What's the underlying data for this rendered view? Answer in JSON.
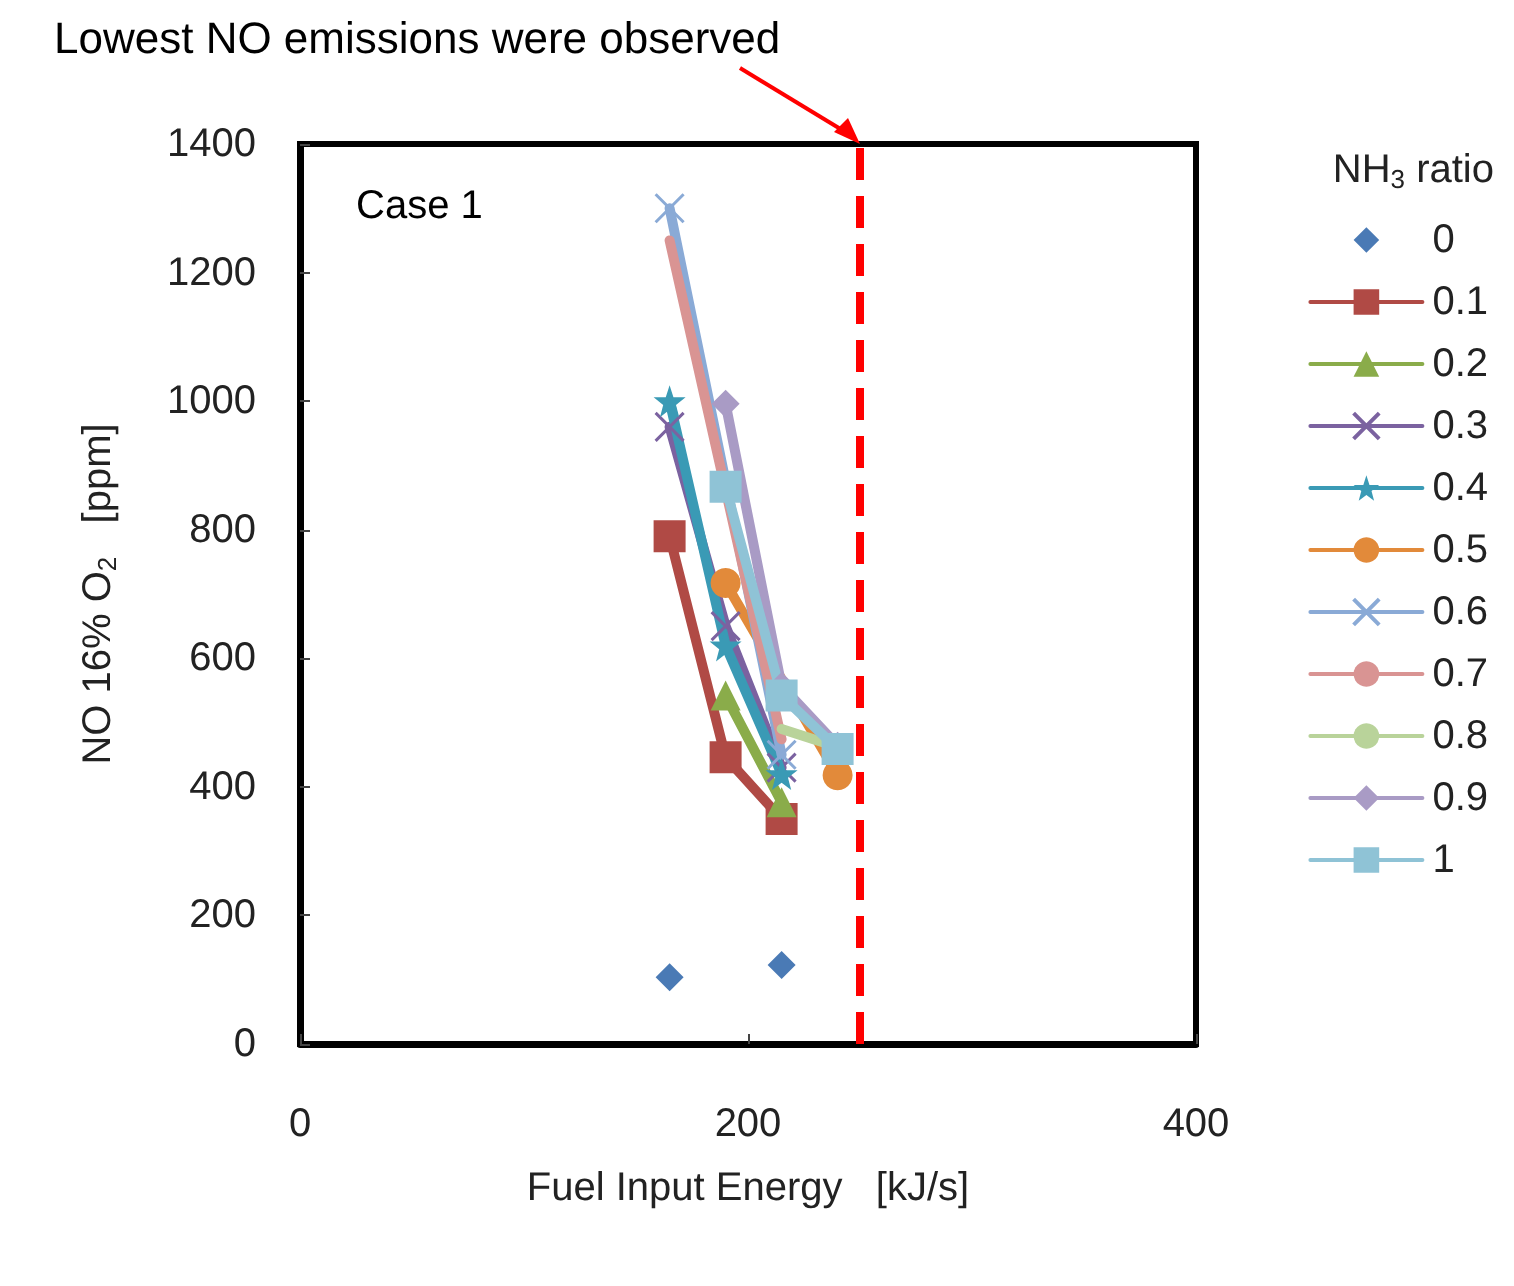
{
  "chart_data": {
    "type": "line",
    "xlabel": "Fuel Input Energy   [kJ/s]",
    "ylabel": "NO 16% O$_{2}$   [ppm]",
    "legend_title": "NH$_{3}$ ratio",
    "xlim": [
      0,
      400
    ],
    "xticks": [
      0,
      200,
      400
    ],
    "ylim": [
      0,
      1400
    ],
    "yticks": [
      0,
      200,
      400,
      600,
      800,
      1000,
      1200,
      1400
    ],
    "grid": false,
    "legend": "right",
    "annotations": [
      "Case 1"
    ],
    "ref_lines": [
      {
        "axis": "x",
        "value": 250,
        "label": "Lowest NO emissions were observed",
        "color": "#ff0000",
        "line_style": "dashed"
      }
    ],
    "series": [
      {
        "name": "0",
        "type": "scatter",
        "marker": "diamond",
        "color": "#4a7ab5",
        "x": [
          165,
          215
        ],
        "values": [
          104,
          123
        ]
      },
      {
        "name": "0.1",
        "marker": "square",
        "color": "#b04a45",
        "x": [
          165,
          190,
          215
        ],
        "values": [
          790,
          446,
          350
        ]
      },
      {
        "name": "0.2",
        "marker": "triangle",
        "color": "#8aac4a",
        "x": [
          190,
          215
        ],
        "values": [
          542,
          376
        ]
      },
      {
        "name": "0.3",
        "marker": "cross",
        "color": "#7b62a0",
        "x": [
          165,
          190,
          215
        ],
        "values": [
          960,
          650,
          430
        ]
      },
      {
        "name": "0.4",
        "marker": "star",
        "color": "#3a9ab5",
        "x": [
          165,
          190,
          215
        ],
        "values": [
          1000,
          620,
          420
        ]
      },
      {
        "name": "0.5",
        "marker": "circle",
        "color": "#e28a3a",
        "x": [
          190,
          240
        ],
        "values": [
          717,
          418
        ]
      },
      {
        "name": "0.6",
        "marker": "cross",
        "color": "#8aaad6",
        "x": [
          165,
          215
        ],
        "values": [
          1300,
          450
        ]
      },
      {
        "name": "0.7",
        "marker": "none",
        "color": "#d99493",
        "x": [
          165,
          215
        ],
        "values": [
          1250,
          474
        ]
      },
      {
        "name": "0.8",
        "marker": "none",
        "color": "#b9d39a",
        "x": [
          215,
          240
        ],
        "values": [
          490,
          462
        ]
      },
      {
        "name": "0.9",
        "marker": "diamond",
        "color": "#a99bc5",
        "x": [
          190,
          215,
          240
        ],
        "values": [
          996,
          557,
          464
        ]
      },
      {
        "name": "1",
        "marker": "square",
        "color": "#8fc3d6",
        "x": [
          190,
          215,
          240
        ],
        "values": [
          867,
          542,
          459
        ]
      }
    ]
  }
}
